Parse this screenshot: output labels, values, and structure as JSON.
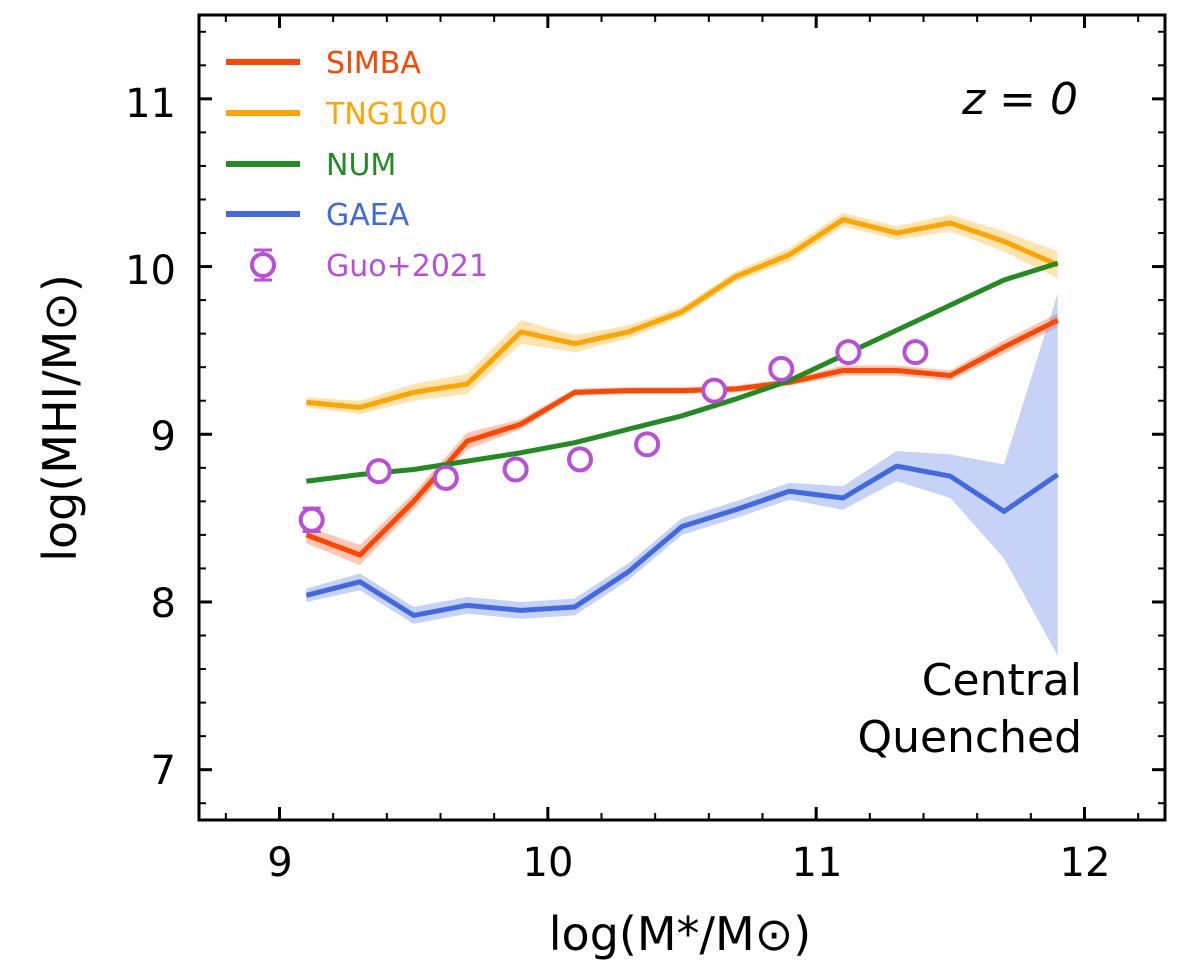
{
  "chart_data": {
    "type": "line",
    "xlabel": "log(M*/M⊙)",
    "ylabel": "log(MHI/M⊙)",
    "xlim": [
      8.7,
      12.3
    ],
    "ylim": [
      6.7,
      11.5
    ],
    "xticks": [
      9,
      10,
      11,
      12
    ],
    "yticks": [
      7,
      8,
      9,
      10,
      11
    ],
    "xtick_labels": [
      "9",
      "10",
      "11",
      "12"
    ],
    "ytick_labels": [
      "7",
      "8",
      "9",
      "10",
      "11"
    ],
    "annotation_redshift": "z = 0",
    "annotation_sample": [
      "Central",
      "Quenched"
    ],
    "legend_position": "top-left",
    "series": [
      {
        "name": "SIMBA",
        "color": "#ff4500",
        "x": [
          9.1,
          9.3,
          9.5,
          9.7,
          9.9,
          10.1,
          10.3,
          10.5,
          10.7,
          10.9,
          11.1,
          11.3,
          11.5,
          11.7,
          11.9
        ],
        "y": [
          8.4,
          8.28,
          8.6,
          8.96,
          9.06,
          9.25,
          9.26,
          9.26,
          9.27,
          9.31,
          9.38,
          9.38,
          9.35,
          9.52,
          9.68
        ],
        "err": [
          0.05,
          0.06,
          0.05,
          0.05,
          0.03,
          0.02,
          0.02,
          0.02,
          0.02,
          0.02,
          0.03,
          0.03,
          0.03,
          0.04,
          0.04
        ]
      },
      {
        "name": "TNG100",
        "color": "#ffa500",
        "x": [
          9.1,
          9.3,
          9.5,
          9.7,
          9.9,
          10.1,
          10.3,
          10.5,
          10.7,
          10.9,
          11.1,
          11.3,
          11.5,
          11.7,
          11.9
        ],
        "y": [
          9.19,
          9.16,
          9.25,
          9.3,
          9.61,
          9.54,
          9.61,
          9.73,
          9.94,
          10.07,
          10.28,
          10.2,
          10.26,
          10.15,
          10.01
        ],
        "err": [
          0.03,
          0.04,
          0.05,
          0.06,
          0.07,
          0.05,
          0.04,
          0.03,
          0.03,
          0.04,
          0.04,
          0.04,
          0.05,
          0.06,
          0.08
        ]
      },
      {
        "name": "NUM",
        "color": "#228b22",
        "x": [
          9.1,
          9.3,
          9.5,
          9.7,
          9.9,
          10.1,
          10.3,
          10.5,
          10.7,
          10.9,
          11.1,
          11.3,
          11.5,
          11.7,
          11.9
        ],
        "y": [
          8.72,
          8.76,
          8.79,
          8.84,
          8.89,
          8.95,
          9.03,
          9.11,
          9.21,
          9.32,
          9.47,
          9.62,
          9.77,
          9.92,
          10.02
        ],
        "err": [
          0,
          0,
          0,
          0,
          0,
          0,
          0,
          0,
          0,
          0,
          0,
          0,
          0,
          0,
          0
        ]
      },
      {
        "name": "GAEA",
        "color": "#4169e1",
        "x": [
          9.1,
          9.3,
          9.5,
          9.7,
          9.9,
          10.1,
          10.3,
          10.5,
          10.7,
          10.9,
          11.1,
          11.3,
          11.5,
          11.7,
          11.9
        ],
        "y": [
          8.04,
          8.12,
          7.92,
          7.98,
          7.95,
          7.97,
          8.18,
          8.45,
          8.55,
          8.66,
          8.62,
          8.81,
          8.75,
          8.54,
          8.76
        ],
        "err": [
          0.04,
          0.05,
          0.05,
          0.05,
          0.05,
          0.05,
          0.05,
          0.05,
          0.05,
          0.05,
          0.07,
          0.09,
          0.13,
          0.28,
          1.08
        ]
      }
    ],
    "points": {
      "name": "Guo+2021",
      "color": "#b94fd9",
      "x": [
        9.12,
        9.37,
        9.62,
        9.88,
        10.12,
        10.37,
        10.62,
        10.87,
        11.12,
        11.37
      ],
      "y": [
        8.49,
        8.78,
        8.74,
        8.79,
        8.85,
        8.94,
        9.26,
        9.39,
        9.49,
        9.49
      ],
      "yerr": [
        0.07,
        0.04,
        0.04,
        0.03,
        0.03,
        0.03,
        0.03,
        0.04,
        0.04,
        0.05
      ]
    }
  }
}
